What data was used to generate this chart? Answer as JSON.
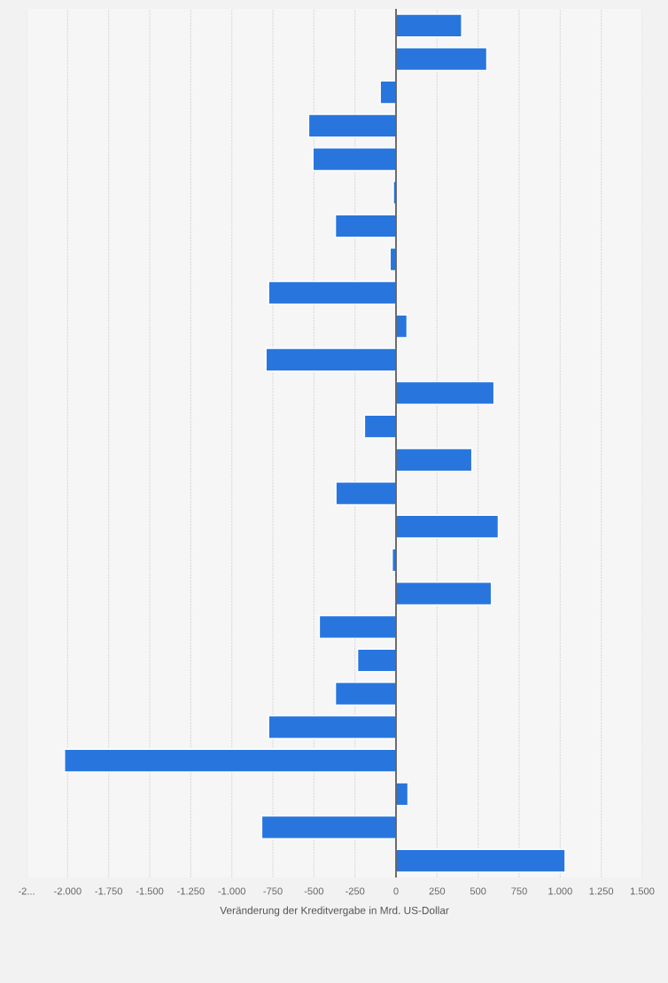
{
  "chart_data": {
    "type": "bar",
    "orientation": "horizontal",
    "xlabel": "Veränderung der Kreditvergabe in Mrd. US-Dollar",
    "categories": [
      null,
      null,
      null,
      null,
      null,
      null,
      null,
      null,
      null,
      null,
      null,
      null,
      null,
      null,
      null,
      null,
      null,
      null,
      null,
      null,
      null,
      null,
      null,
      null,
      null,
      null
    ],
    "values": [
      400,
      553,
      -96,
      -532,
      -506,
      -16,
      -369,
      -36,
      -776,
      67,
      -792,
      597,
      -192,
      462,
      -366,
      623,
      -23,
      581,
      -467,
      -234,
      -369,
      -776,
      -2019,
      73,
      -818,
      1030
    ],
    "color": "#2876dd",
    "xlim": [
      -2250,
      1500
    ],
    "xticks": [
      {
        "value": -2250,
        "label": "-2..."
      },
      {
        "value": -2000,
        "label": "-2.000"
      },
      {
        "value": -1750,
        "label": "-1.750"
      },
      {
        "value": -1500,
        "label": "-1.500"
      },
      {
        "value": -1250,
        "label": "-1.250"
      },
      {
        "value": -1000,
        "label": "-1.000"
      },
      -750,
      -500,
      -250,
      0,
      250,
      500,
      750,
      {
        "value": 1000,
        "label": "1.000"
      },
      {
        "value": 1250,
        "label": "1.250"
      },
      {
        "value": 1500,
        "label": "1.500"
      }
    ],
    "grid": "x"
  }
}
